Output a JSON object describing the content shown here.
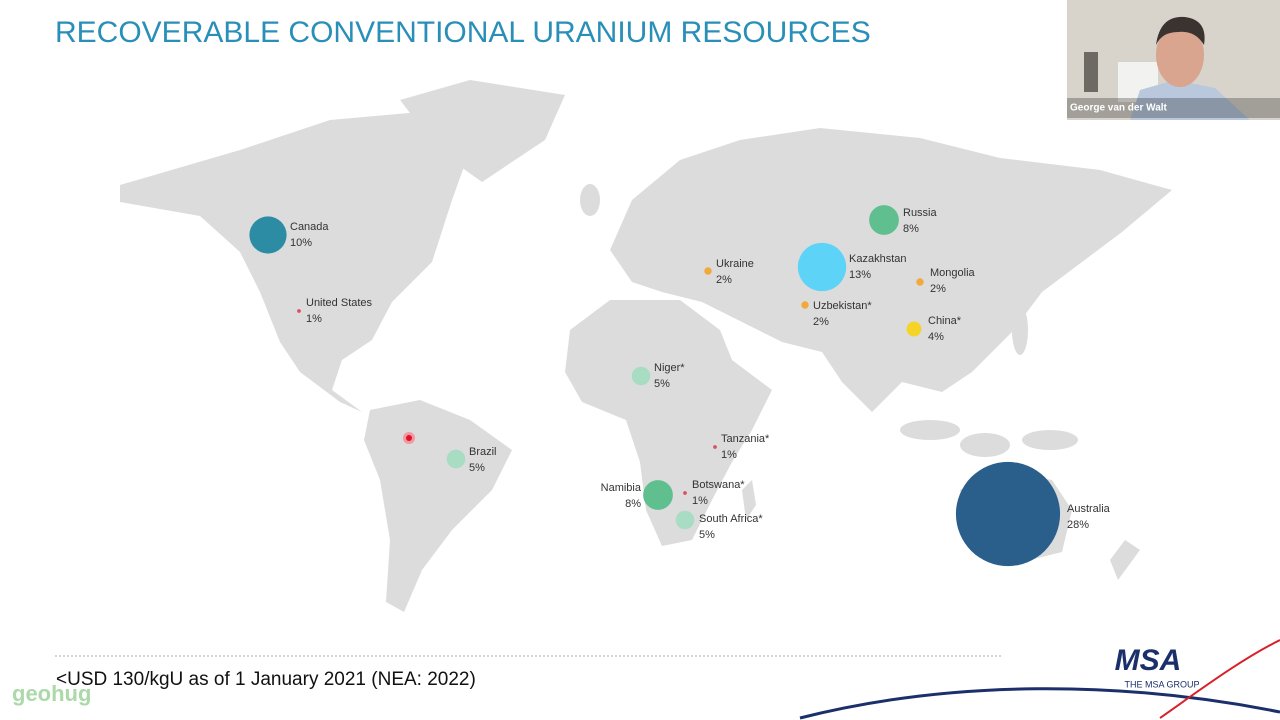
{
  "header": {
    "title": "RECOVERABLE CONVENTIONAL URANIUM RESOURCES"
  },
  "map": {
    "bubbles": [
      {
        "country": "Canada",
        "share": {
          "value": 10,
          "label": "10%"
        },
        "color": "#2b8ca3"
      },
      {
        "country": "United States",
        "share": {
          "value": 1,
          "label": "1%"
        },
        "color": "#d9505f"
      },
      {
        "country": "Brazil",
        "share": {
          "value": 5,
          "label": "5%"
        },
        "color": "#a9ddc3"
      },
      {
        "country": "Niger*",
        "share": {
          "value": 5,
          "label": "5%"
        },
        "color": "#a9ddc3"
      },
      {
        "country": "Namibia",
        "share": {
          "value": 8,
          "label": "8%"
        },
        "color": "#5fbf8f"
      },
      {
        "country": "Botswana*",
        "share": {
          "value": 1,
          "label": "1%"
        },
        "color": "#d9505f"
      },
      {
        "country": "South Africa*",
        "share": {
          "value": 5,
          "label": "5%"
        },
        "color": "#a9ddc3"
      },
      {
        "country": "Tanzania*",
        "share": {
          "value": 1,
          "label": "1%"
        },
        "color": "#d9505f"
      },
      {
        "country": "Ukraine",
        "share": {
          "value": 2,
          "label": "2%"
        },
        "color": "#f2a93b"
      },
      {
        "country": "Kazakhstan",
        "share": {
          "value": 13,
          "label": "13%"
        },
        "color": "#5dd3f7"
      },
      {
        "country": "Uzbekistan*",
        "share": {
          "value": 2,
          "label": "2%"
        },
        "color": "#f2a93b"
      },
      {
        "country": "Russia",
        "share": {
          "value": 8,
          "label": "8%"
        },
        "color": "#5fbf8f"
      },
      {
        "country": "Mongolia",
        "share": {
          "value": 2,
          "label": "2%"
        },
        "color": "#f2a93b"
      },
      {
        "country": "China*",
        "share": {
          "value": 4,
          "label": "4%"
        },
        "color": "#f5d327"
      },
      {
        "country": "Australia",
        "share": {
          "value": 28,
          "label": "28%"
        },
        "color": "#2a5f8c"
      }
    ]
  },
  "footnote": "<USD 130/kgU as of 1 January 2021 (NEA: 2022)",
  "video": {
    "participant": "George van der Walt"
  },
  "logo": {
    "name": "MSA",
    "tagline": "THE MSA GROUP"
  },
  "watermark": "geohug"
}
